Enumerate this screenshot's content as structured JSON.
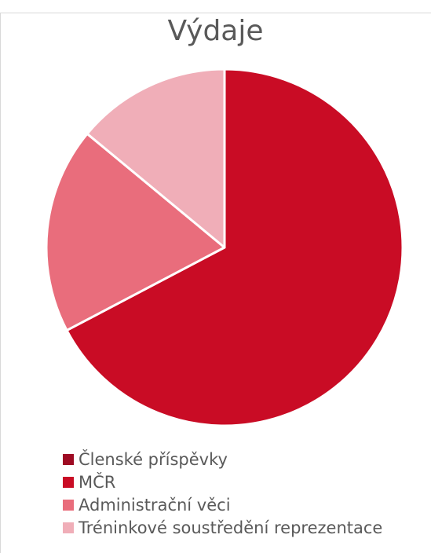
{
  "chart_data": {
    "type": "pie",
    "title": "Výdaje",
    "categories": [
      "Členské příspěvky",
      "MČR",
      "Administrační věci",
      "Tréninkové soustředění reprezentace"
    ],
    "values": [
      0,
      67.3,
      18.7,
      14.0
    ],
    "unit": "%",
    "colors": [
      "#9e0b23",
      "#c90c25",
      "#e96d7c",
      "#f0aeb8"
    ],
    "legend_position": "bottom"
  }
}
